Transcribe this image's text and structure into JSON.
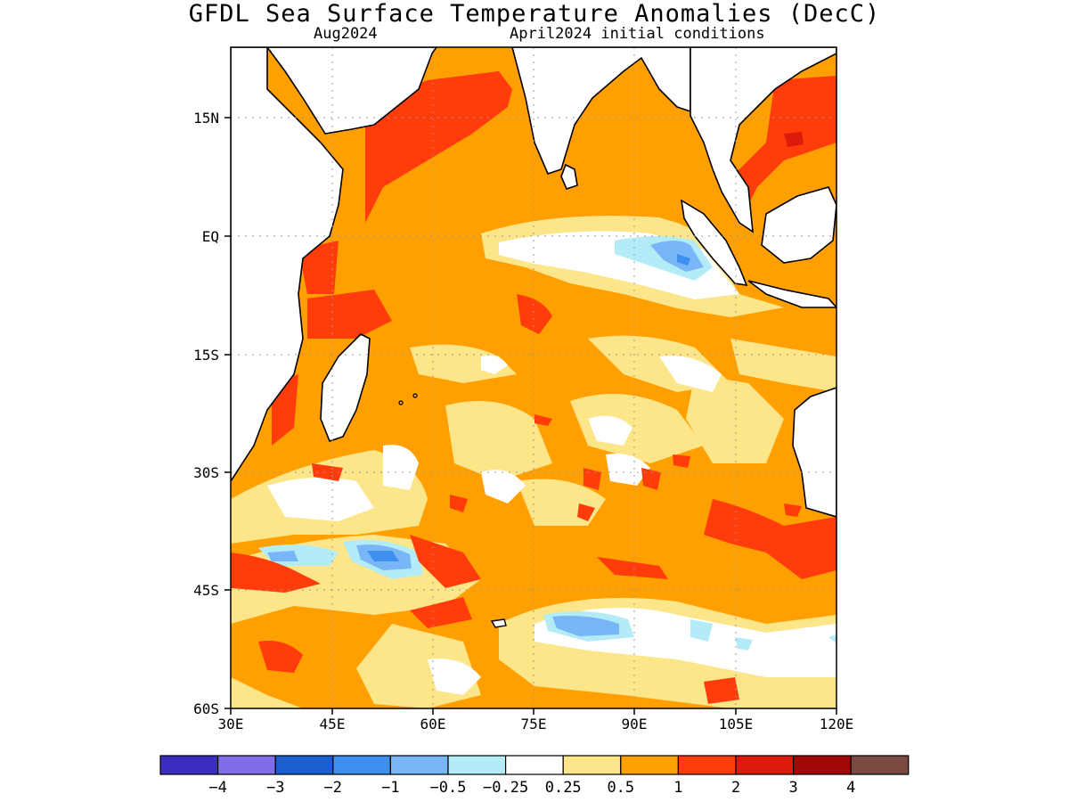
{
  "title": "GFDL Sea Surface Temperature Anomalies (DecC)",
  "subtitle_left": "Aug2024",
  "subtitle_right": "April2024 initial conditions",
  "map": {
    "lon_range": [
      30,
      120
    ],
    "lat_range": [
      -60,
      24
    ],
    "lon_ticks": [
      "30E",
      "45E",
      "60E",
      "75E",
      "90E",
      "105E",
      "120E"
    ],
    "lat_ticks": [
      "15N",
      "EQ",
      "15S",
      "30S",
      "45S",
      "60S"
    ]
  },
  "colorbar": {
    "colors": [
      "#3a2dbf",
      "#7f6ee8",
      "#1a5ecf",
      "#3d8ff0",
      "#78b6f7",
      "#b3ecf7",
      "#ffffff",
      "#fde58a",
      "#ff9f00",
      "#ff3c0a",
      "#dd1b0a",
      "#a30808",
      "#7a4a40"
    ],
    "labels": [
      "−4",
      "−3",
      "−2",
      "−1",
      "−0.5",
      "−0.25",
      "0.25",
      "0.5",
      "1",
      "2",
      "3",
      "4"
    ]
  }
}
